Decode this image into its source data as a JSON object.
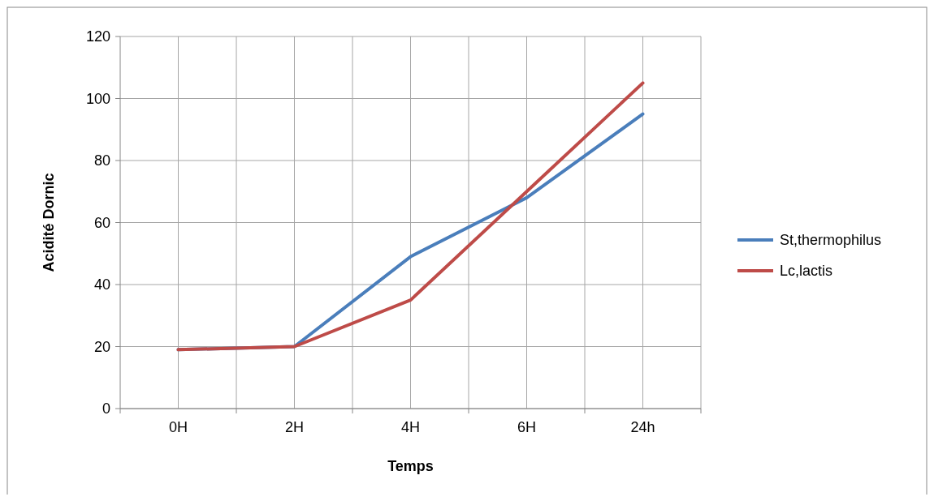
{
  "chart_data": {
    "type": "line",
    "xlabel": "Temps",
    "ylabel": "Acidité Dornic",
    "categories": [
      "0H",
      "2H",
      "4H",
      "6H",
      "24h"
    ],
    "series": [
      {
        "name": "St,thermophilus",
        "color": "#4a7ebb",
        "values": [
          19,
          20,
          49,
          68,
          95
        ]
      },
      {
        "name": "Lc,lactis",
        "color": "#be4b48",
        "values": [
          19,
          20,
          35,
          70,
          105
        ]
      }
    ],
    "ylim": [
      0,
      120
    ],
    "yticks": [
      0,
      20,
      40,
      60,
      80,
      100,
      120
    ],
    "grid": true,
    "legend": "right",
    "marker": "none",
    "line_style": "solid"
  }
}
